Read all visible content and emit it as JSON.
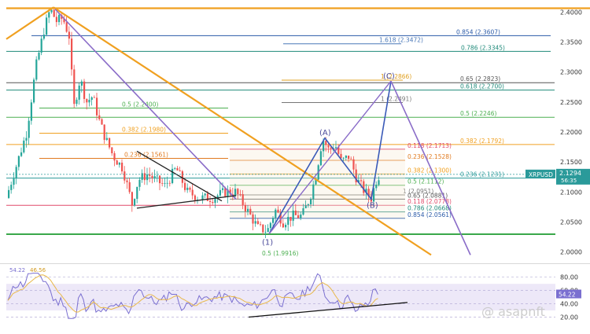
{
  "chart_data": {
    "type": "candlestick",
    "symbol": "XRPUSD",
    "last_price": "2.1294",
    "countdown": "56:35",
    "y_axis": {
      "ylim": [
        1.985,
        2.415
      ],
      "ticks": [
        "2.4000",
        "2.3500",
        "2.3000",
        "2.2500",
        "2.2000",
        "2.1500",
        "2.1000",
        "2.0500",
        "2.0000"
      ]
    },
    "fib_levels": [
      {
        "label": "0.854 (2.3607)",
        "value": 2.3607,
        "color": "#2a5aa8"
      },
      {
        "label": "1.618 (2.3472)",
        "value": 2.3472,
        "color": "#4a78b8"
      },
      {
        "label": "0.786 (2.3345)",
        "value": 2.3345,
        "color": "#1f8a7a"
      },
      {
        "label": "0.5 (2.2400)",
        "value": 2.24,
        "color": "#4caf50"
      },
      {
        "label": "1 (2.2866)",
        "value": 2.2866,
        "color": "#e0a020"
      },
      {
        "label": "0.65 (2.2823)",
        "value": 2.2823,
        "color": "#555555"
      },
      {
        "label": "0.618 (2.2700)",
        "value": 2.27,
        "color": "#1f8a7a"
      },
      {
        "label": "1 (2.2491)",
        "value": 2.2491,
        "color": "#777777"
      },
      {
        "label": "0.5 (2.2246)",
        "value": 2.2246,
        "color": "#4caf50"
      },
      {
        "label": "0.382 (2.1980)",
        "value": 2.198,
        "color": "#f0a020"
      },
      {
        "label": "0.382 (2.1792)",
        "value": 2.1792,
        "color": "#f0a020"
      },
      {
        "label": "0.118 (2.1713)",
        "value": 2.1713,
        "color": "#e04a6a"
      },
      {
        "label": "0.236 (2.1528)",
        "value": 2.1528,
        "color": "#e07a20"
      },
      {
        "label": "0.236 (2.1561)",
        "value": 2.1561,
        "color": "#e07a20"
      },
      {
        "label": "0.382 (2.1300)",
        "value": 2.13,
        "color": "#f0a020"
      },
      {
        "label": "0.236 (2.1231)",
        "value": 2.1231,
        "color": "#2a9a9a"
      },
      {
        "label": "0.5 (2.1112)",
        "value": 2.1112,
        "color": "#4caf50"
      },
      {
        "label": "1 (2.0951)",
        "value": 2.0951,
        "color": "#777777"
      },
      {
        "label": "0.65 (2.0881)",
        "value": 2.0881,
        "color": "#555555"
      },
      {
        "label": "0.118 (2.0778)",
        "value": 2.0778,
        "color": "#e04a6a"
      },
      {
        "label": "0.786 (2.0668)",
        "value": 2.0668,
        "color": "#1f8a7a"
      },
      {
        "label": "0.854 (2.0561)",
        "value": 2.0561,
        "color": "#2a5aa8"
      },
      {
        "label": "0.5 (1.9916)",
        "value": 1.9916,
        "color": "#4caf50"
      }
    ],
    "wave_labels": [
      "(A)",
      "(B)",
      "(C)",
      "(1)"
    ],
    "rsi": {
      "value": "54.22",
      "ma_value": "46.56",
      "ticks": [
        "80.00",
        "60.00",
        "40.00",
        "20.00"
      ],
      "ylim": [
        10,
        95
      ]
    },
    "watermark": "@ asapnft",
    "colors": {
      "bull": "#26a69a",
      "bear": "#ef5350",
      "orange": "#f0a020",
      "purple": "#8a6cc8",
      "blue_wave": "#3a5ab8",
      "rsi": "#7a6fd0",
      "rsi_ma": "#e8b84a"
    }
  }
}
